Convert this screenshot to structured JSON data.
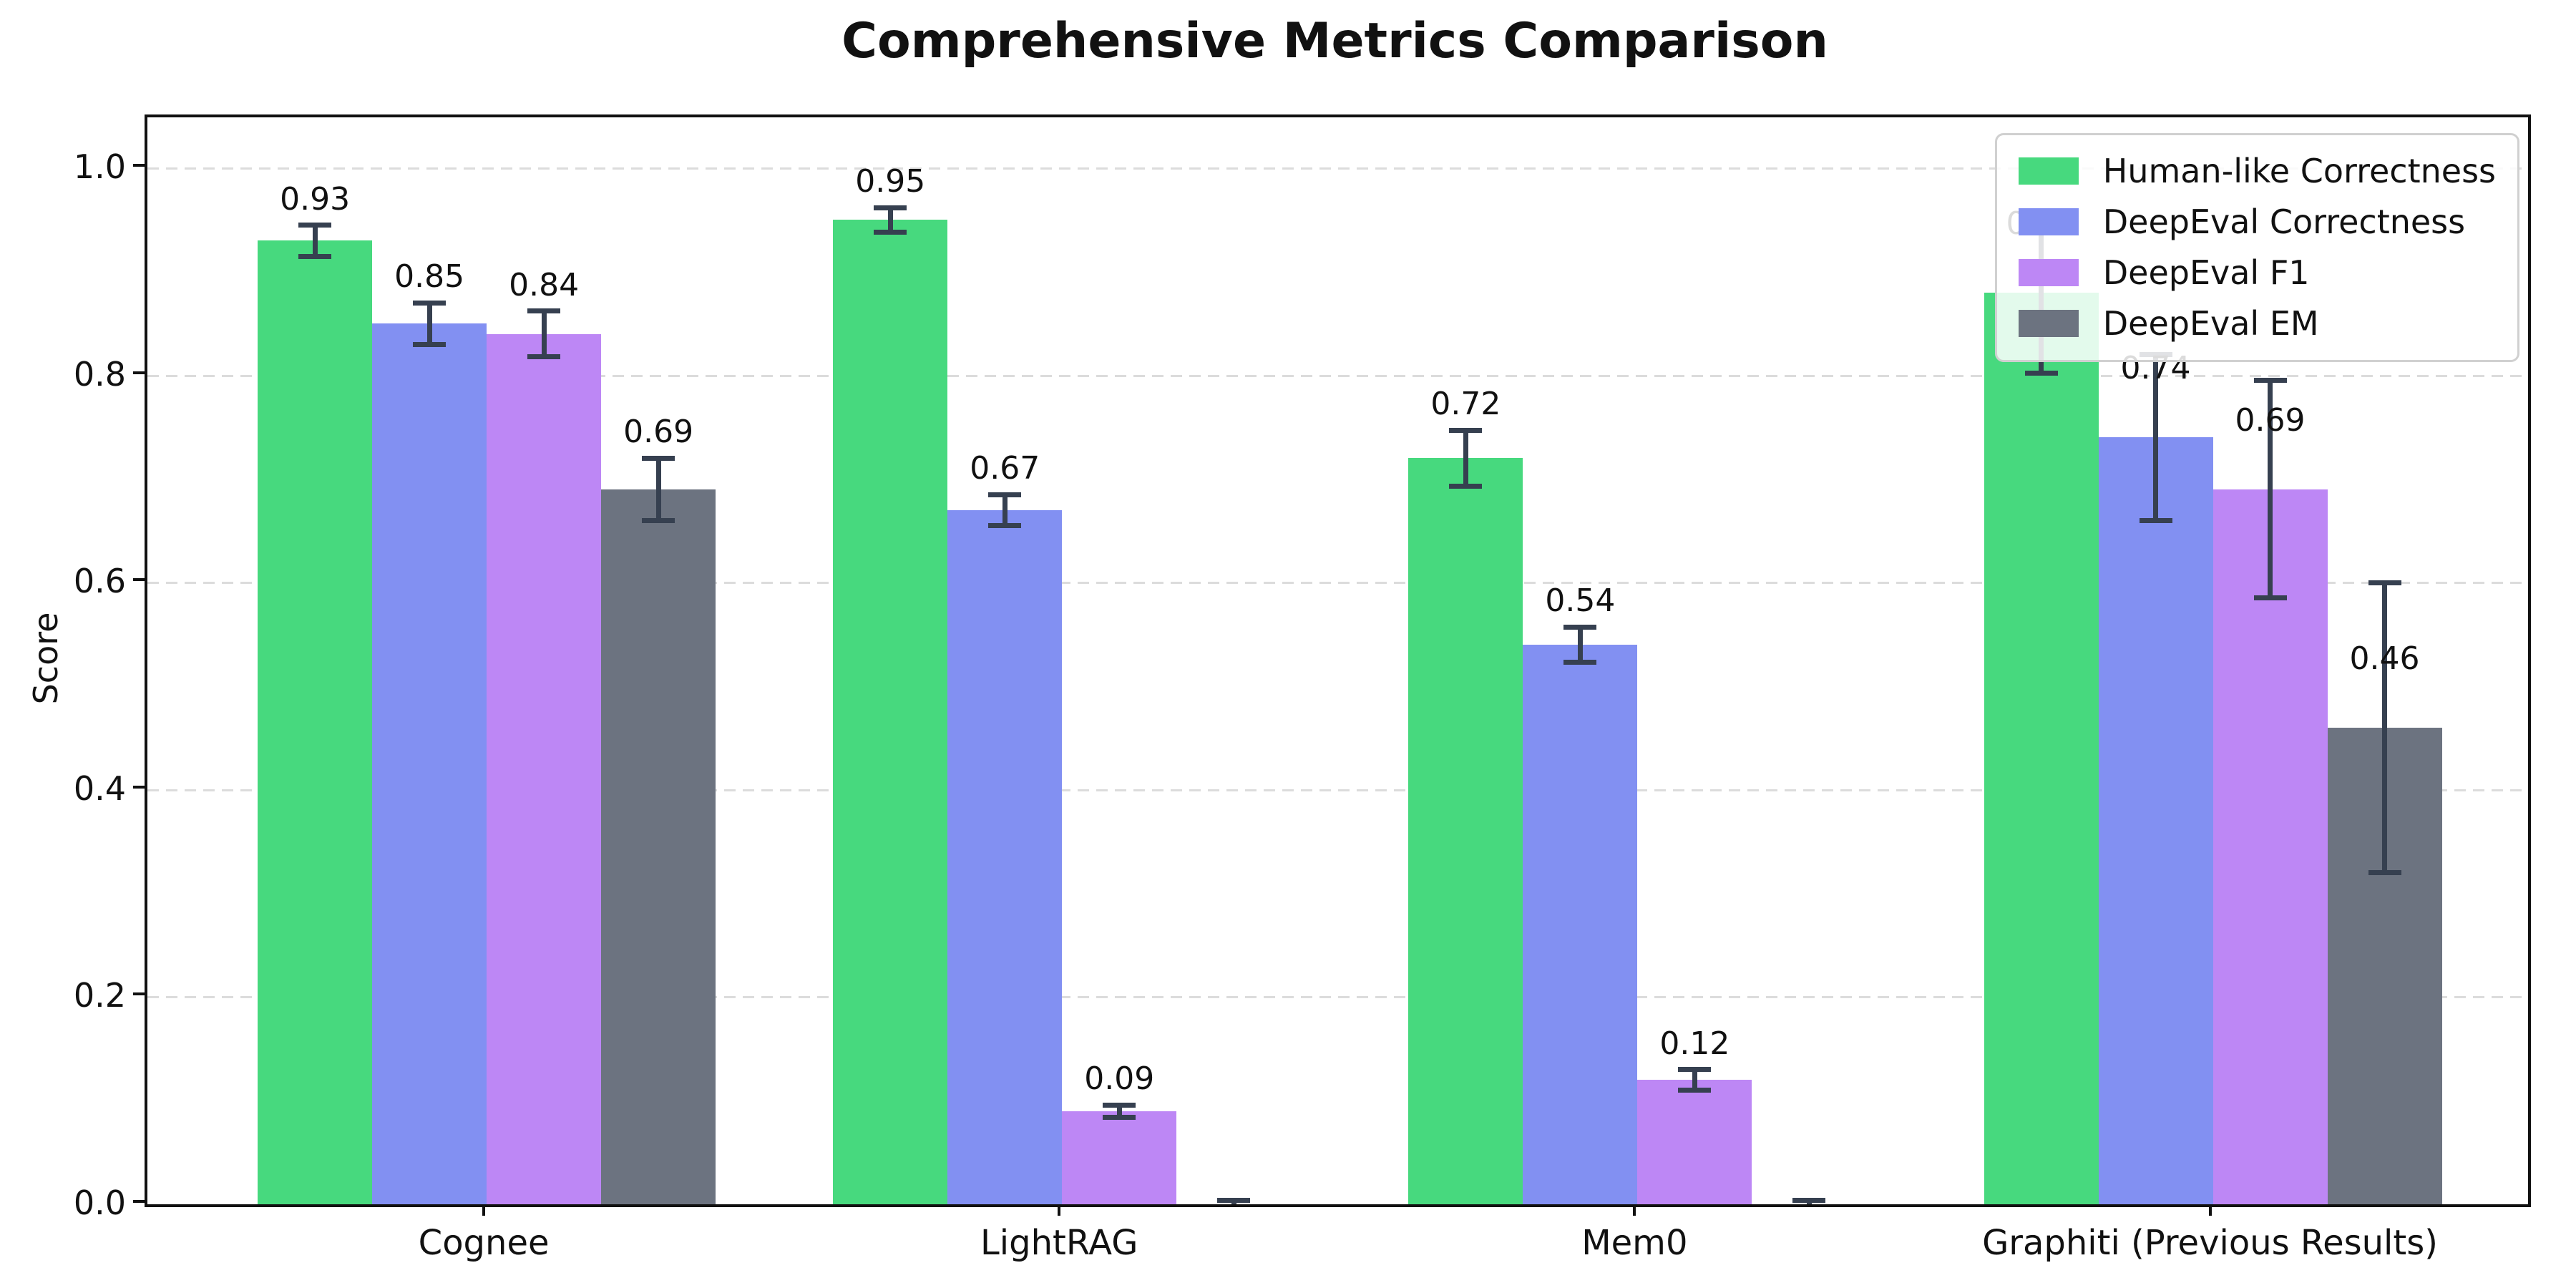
{
  "page": {
    "title": "Comprehensive Metrics Comparison"
  },
  "chart_data": {
    "type": "bar",
    "title": "Comprehensive Metrics Comparison",
    "ylabel": "Score",
    "xlabel": "",
    "categories": [
      "Cognee",
      "LightRAG",
      "Mem0",
      "Graphiti (Previous Results)"
    ],
    "series": [
      {
        "name": "Human-like Correctness",
        "color": "#47d97e",
        "values": [
          0.93,
          0.95,
          0.72,
          0.88
        ],
        "errors": [
          0.015,
          0.012,
          0.027,
          0.078
        ],
        "labels": [
          "0.93",
          "0.95",
          "0.72",
          "0.88"
        ]
      },
      {
        "name": "DeepEval Correctness",
        "color": "#8290f2",
        "values": [
          0.85,
          0.67,
          0.54,
          0.74
        ],
        "errors": [
          0.02,
          0.015,
          0.017,
          0.08
        ],
        "labels": [
          "0.85",
          "0.67",
          "0.54",
          "0.74"
        ]
      },
      {
        "name": "DeepEval F1",
        "color": "#bd87f5",
        "values": [
          0.84,
          0.09,
          0.12,
          0.69
        ],
        "errors": [
          0.022,
          0.006,
          0.01,
          0.105
        ],
        "labels": [
          "0.84",
          "0.09",
          "0.12",
          "0.69"
        ]
      },
      {
        "name": "DeepEval EM",
        "color": "#6c7380",
        "values": [
          0.69,
          0.0,
          0.0,
          0.46
        ],
        "errors": [
          0.03,
          0.004,
          0.004,
          0.14
        ],
        "labels": [
          "0.69",
          null,
          null,
          "0.46"
        ]
      }
    ],
    "yticks": [
      0.0,
      0.2,
      0.4,
      0.6,
      0.8,
      1.0
    ],
    "ytick_labels": [
      "0.0",
      "0.2",
      "0.4",
      "0.6",
      "0.8",
      "1.0"
    ],
    "ylim": [
      0,
      1.049
    ],
    "grid": {
      "axis": "y",
      "style": "dashed",
      "color": "#dcdcdc"
    },
    "legend": {
      "position": "upper right",
      "entries": [
        "Human-like Correctness",
        "DeepEval Correctness",
        "DeepEval F1",
        "DeepEval EM"
      ]
    }
  },
  "colors": {
    "background": "#ffffff",
    "text": "#111111",
    "spine": "#111111",
    "grid": "#dcdcdc",
    "error_bar": "#364050",
    "legend_border": "#d0d0d0",
    "series_green": "#47d97e",
    "series_blue": "#8290f2",
    "series_purple": "#bd87f5",
    "series_gray": "#6c7380"
  }
}
